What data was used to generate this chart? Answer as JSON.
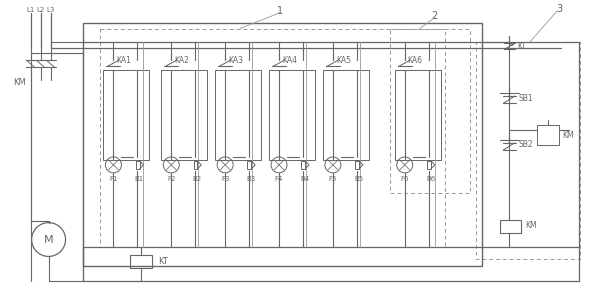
{
  "fig_width": 5.89,
  "fig_height": 2.87,
  "dpi": 100,
  "bg_color": "#ffffff",
  "lc": "#666666",
  "lc2": "#999999",
  "label1": "1",
  "label2": "2",
  "label3": "3",
  "L_labels": [
    "L1",
    "L2",
    "L3"
  ],
  "KA_labels": [
    "KA1",
    "KA2",
    "KA3",
    "KA4",
    "KA5",
    "KA6"
  ],
  "F_labels": [
    "F1",
    "F2",
    "F3",
    "F4",
    "F5",
    "F6"
  ],
  "B_labels": [
    "B1",
    "B2",
    "B3",
    "B4",
    "B5",
    "B6"
  ],
  "motor_label": "M",
  "KT_label": "KT",
  "KM_label": "KM",
  "SB1_label": "SB1",
  "SB2_label": "SB2",
  "channels": [
    {
      "f": "F1",
      "b": "B1",
      "ka": "KA1"
    },
    {
      "f": "F2",
      "b": "B2",
      "ka": "KA2"
    },
    {
      "f": "F3",
      "b": "B3",
      "ka": "KA3"
    },
    {
      "f": "F4",
      "b": "B4",
      "ka": "KA4"
    },
    {
      "f": "F5",
      "b": "B5",
      "ka": "KA5"
    },
    {
      "f": "F6",
      "b": "B6",
      "ka": "KA6"
    }
  ]
}
